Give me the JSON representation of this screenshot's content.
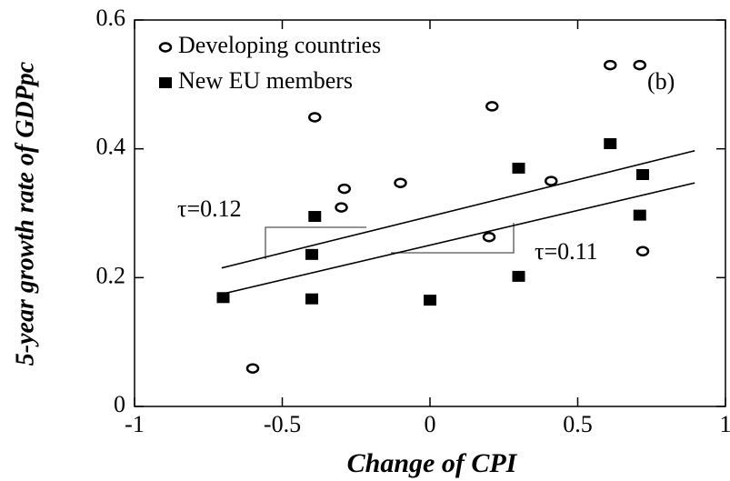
{
  "chart_data": {
    "type": "scatter",
    "xlabel": "Change of CPI",
    "ylabel": "5-year growth rate of GDPpc",
    "xlim": [
      -1,
      1
    ],
    "xticks": [
      -1,
      -0.5,
      0,
      0.5,
      1
    ],
    "ylim": [
      0,
      0.6
    ],
    "yticks": [
      0,
      0.2,
      0.4,
      0.6
    ],
    "legend": "upper left",
    "series": [
      {
        "name": "Developing countries",
        "color": "#000000",
        "marker": "circle",
        "x": [
          -0.6,
          -0.39,
          -0.29,
          -0.3,
          -0.1,
          0.21,
          0.2,
          0.41,
          0.61,
          0.71,
          0.72
        ],
        "values": [
          0.059,
          0.449,
          0.338,
          0.309,
          0.347,
          0.466,
          0.263,
          0.35,
          0.53,
          0.53,
          0.241
        ]
      },
      {
        "name": "New EU members",
        "color": "#000000",
        "marker": "square",
        "x": [
          -0.7,
          -0.39,
          -0.4,
          -0.4,
          0.0,
          0.3,
          0.3,
          0.61,
          0.72,
          0.71
        ],
        "values": [
          0.169,
          0.295,
          0.236,
          0.167,
          0.165,
          0.37,
          0.202,
          0.408,
          0.36,
          0.297
        ]
      }
    ],
    "fit_lines": [
      {
        "x": [
          -0.705,
          0.896
        ],
        "values": [
          0.215,
          0.397
        ]
      },
      {
        "x": [
          -0.7,
          0.896
        ],
        "values": [
          0.175,
          0.347
        ]
      }
    ],
    "annotations": [
      "τ=0.12",
      "τ=0.11",
      "(b)"
    ]
  }
}
